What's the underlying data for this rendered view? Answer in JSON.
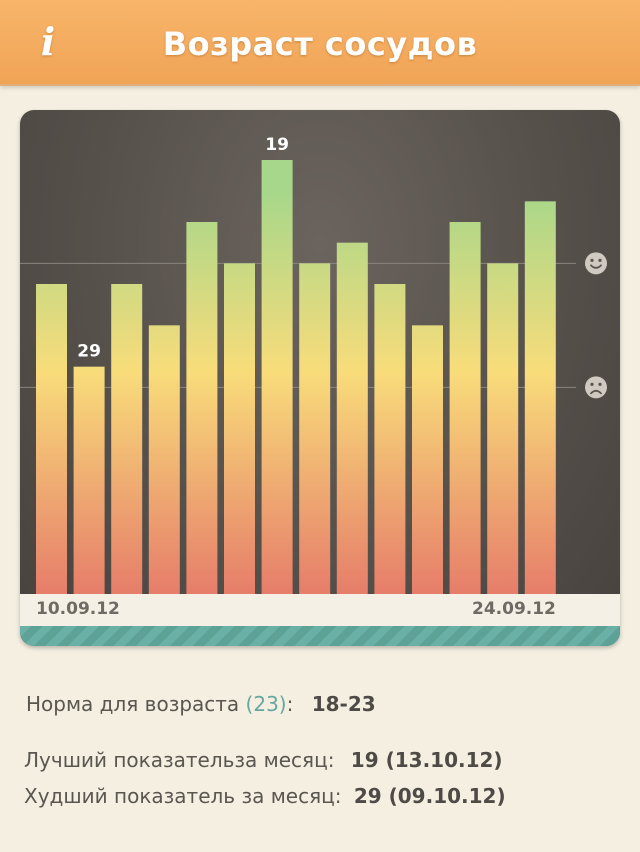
{
  "header": {
    "title": "Возраст сосудов",
    "info_icon": "i"
  },
  "chart_data": {
    "type": "bar",
    "values": [
      25,
      29,
      25,
      27,
      22,
      24,
      19,
      24,
      23,
      25,
      27,
      22,
      24,
      21
    ],
    "value_labels": [
      {
        "index": 1,
        "text": "29"
      },
      {
        "index": 6,
        "text": "19"
      }
    ],
    "x_labels": [
      {
        "index": 0,
        "text": "10.09.12"
      },
      {
        "index": 12,
        "text": "24.09.12"
      }
    ],
    "reference_lines": [
      {
        "value": 24,
        "icon": "smiley-face-icon"
      },
      {
        "value": 30,
        "icon": "sad-face-icon"
      }
    ],
    "ylim": [
      19,
      40
    ],
    "inverted": true,
    "colors": {
      "top": "#a6d78a",
      "middle": "#f8dc7a",
      "bottom": "#e67d6a",
      "background": "#57514c",
      "reference_line": "#8a847e"
    }
  },
  "summary": {
    "norm_label": "Норма для возраста",
    "norm_age": "(23)",
    "norm_colon": ":",
    "norm_value": "18-23",
    "best_label": "Лучший показательза месяц:",
    "best_value": "19 (13.10.12)",
    "worst_label": "Худший показатель за месяц:",
    "worst_value": "29 (09.10.12)"
  }
}
